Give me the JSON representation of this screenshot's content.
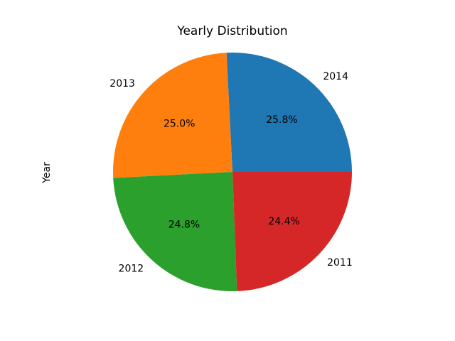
{
  "chart_data": {
    "type": "pie",
    "title": "Yearly Distribution",
    "ylabel": "Year",
    "labels": [
      "2014",
      "2013",
      "2012",
      "2011"
    ],
    "values": [
      25.8,
      25.0,
      24.8,
      24.4
    ],
    "percent_labels": [
      "25.8%",
      "25.0%",
      "24.8%",
      "24.4%"
    ],
    "colors": [
      "#1f77b4",
      "#ff7f0e",
      "#2ca02c",
      "#d62728"
    ],
    "start_angle_deg": 0,
    "direction": "counterclockwise"
  }
}
